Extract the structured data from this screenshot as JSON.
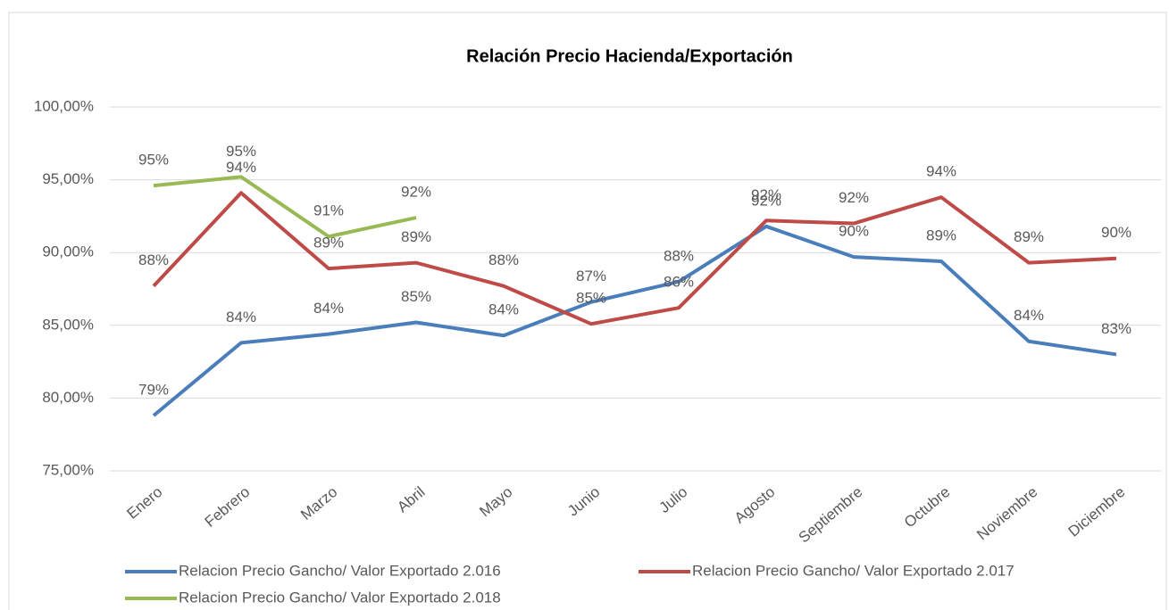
{
  "chart_data": {
    "type": "line",
    "title": "Relación Precio Hacienda/Exportación",
    "categories": [
      "Enero",
      "Febrero",
      "Marzo",
      "Abril",
      "Mayo",
      "Junio",
      "Julio",
      "Agosto",
      "Septiembre",
      "Octubre",
      "Noviembre",
      "Diciembre"
    ],
    "series": [
      {
        "name": "Relacion Precio Gancho/ Valor Exportado  2.016",
        "color": "#4a7ebb",
        "values": [
          78.8,
          83.8,
          84.4,
          85.2,
          84.3,
          86.6,
          88.0,
          91.8,
          89.7,
          89.4,
          83.9,
          83.0
        ],
        "value_labels": [
          "79%",
          "84%",
          "84%",
          "85%",
          "84%",
          "87%",
          "88%",
          "92%",
          "90%",
          "89%",
          "84%",
          "83%"
        ]
      },
      {
        "name": "Relacion Precio Gancho/ Valor Exportado  2.017",
        "color": "#be4b48",
        "values": [
          87.7,
          94.1,
          88.9,
          89.3,
          87.7,
          85.1,
          86.2,
          92.2,
          92.0,
          93.8,
          89.3,
          89.6
        ],
        "value_labels": [
          "88%",
          "94%",
          "89%",
          "89%",
          "88%",
          "85%",
          "86%",
          "92%",
          "92%",
          "94%",
          "89%",
          "90%"
        ]
      },
      {
        "name": "Relacion Precio Gancho/ Valor Exportado  2.018",
        "color": "#98b954",
        "values": [
          94.6,
          95.2,
          91.1,
          92.4,
          null,
          null,
          null,
          null,
          null,
          null,
          null,
          null
        ],
        "value_labels": [
          "95%",
          "95%",
          "91%",
          "92%",
          null,
          null,
          null,
          null,
          null,
          null,
          null,
          null
        ]
      }
    ],
    "ylim": [
      75,
      100
    ],
    "yticks": [
      {
        "value": 75,
        "label": "75,00%"
      },
      {
        "value": 80,
        "label": "80,00%"
      },
      {
        "value": 85,
        "label": "85,00%"
      },
      {
        "value": 90,
        "label": "90,00%"
      },
      {
        "value": 95,
        "label": "95,00%"
      },
      {
        "value": 100,
        "label": "100,00%"
      }
    ],
    "grid": true
  }
}
